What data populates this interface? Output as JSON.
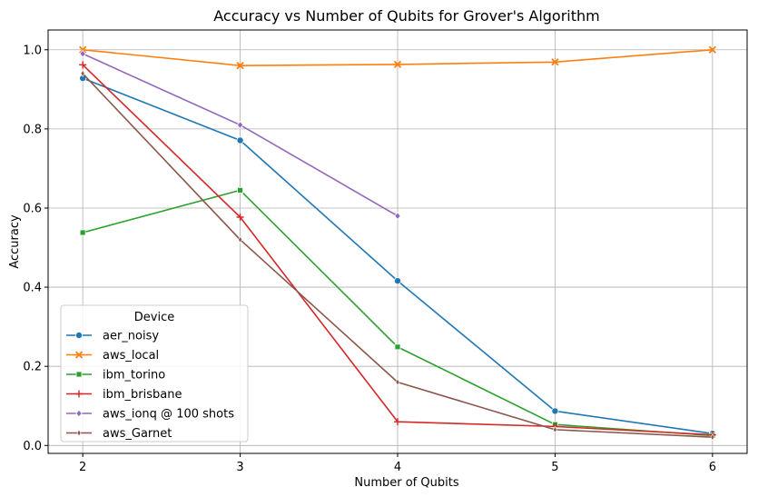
{
  "chart_data": {
    "type": "line",
    "title": "Accuracy vs Number of Qubits for Grover's Algorithm",
    "xlabel": "Number of Qubits",
    "ylabel": "Accuracy",
    "x": [
      2,
      3,
      4,
      5,
      6
    ],
    "xlim": [
      1.78,
      6.22
    ],
    "ylim": [
      -0.02,
      1.05
    ],
    "xticks": [
      "2",
      "3",
      "4",
      "5",
      "6"
    ],
    "yticks": [
      "0.0",
      "0.2",
      "0.4",
      "0.6",
      "0.8",
      "1.0"
    ],
    "grid": true,
    "legend": {
      "title": "Device",
      "placement": "lower-left"
    },
    "series": [
      {
        "name": "aer_noisy",
        "color": "#1f77b4",
        "marker": "circle",
        "x": [
          2,
          3,
          4,
          5,
          6
        ],
        "values": [
          0.928,
          0.771,
          0.416,
          0.087,
          0.03
        ]
      },
      {
        "name": "aws_local",
        "color": "#ff7f0e",
        "marker": "x",
        "x": [
          2,
          3,
          4,
          5,
          6
        ],
        "values": [
          1.0,
          0.96,
          0.963,
          0.969,
          1.0
        ]
      },
      {
        "name": "ibm_torino",
        "color": "#2ca02c",
        "marker": "square",
        "x": [
          2,
          3,
          4,
          5,
          6
        ],
        "values": [
          0.538,
          0.645,
          0.249,
          0.053,
          0.025
        ]
      },
      {
        "name": "ibm_brisbane",
        "color": "#d62728",
        "marker": "plus",
        "x": [
          2,
          3,
          4,
          5,
          6
        ],
        "values": [
          0.962,
          0.577,
          0.06,
          0.048,
          0.027
        ]
      },
      {
        "name": "aws_ionq @ 100 shots",
        "color": "#9467bd",
        "marker": "diamond",
        "x": [
          2,
          3,
          4
        ],
        "values": [
          0.99,
          0.81,
          0.58
        ]
      },
      {
        "name": "aws_Garnet",
        "color": "#8c564b",
        "marker": "thin-diamond",
        "x": [
          2,
          3,
          4,
          5,
          6
        ],
        "values": [
          0.94,
          0.52,
          0.16,
          0.04,
          0.021
        ]
      }
    ]
  }
}
